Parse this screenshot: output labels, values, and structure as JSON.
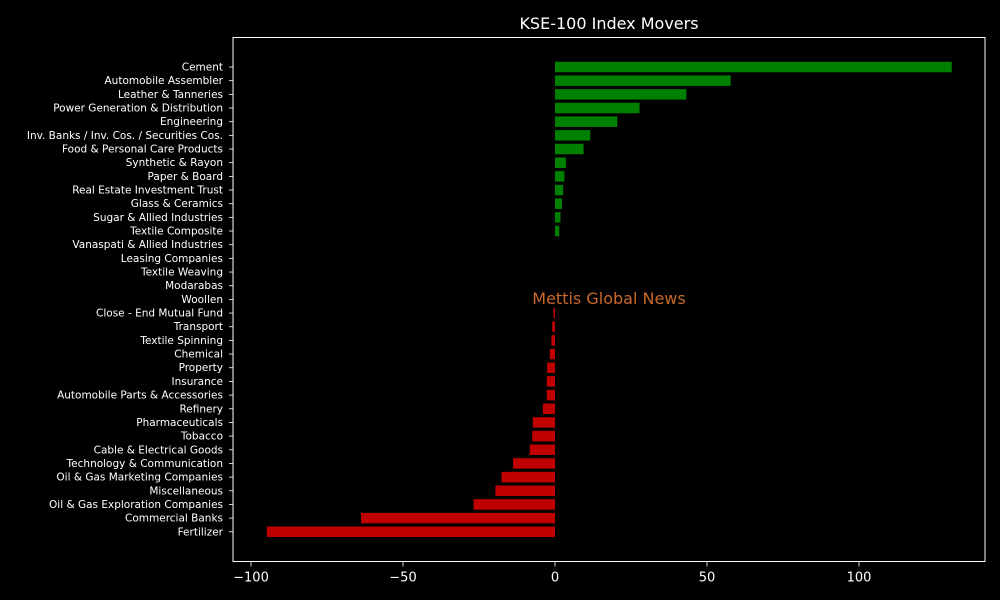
{
  "chart_data": {
    "type": "bar",
    "orientation": "horizontal",
    "title": "KSE-100 Index Movers",
    "watermark": "Mettis Global News",
    "xlabel": "",
    "ylabel": "",
    "xlim": [
      -106,
      142
    ],
    "xticks": [
      -100,
      -50,
      0,
      50,
      100
    ],
    "xtick_labels": [
      "−100",
      "−50",
      "0",
      "50",
      "100"
    ],
    "grid": false,
    "legend": "none",
    "colors": {
      "positive": "#008000",
      "negative": "#c00000",
      "background": "#000000",
      "text": "#ffffff",
      "watermark": "#c8692b"
    },
    "categories": [
      "Cement",
      "Automobile Assembler",
      "Leather & Tanneries",
      "Power Generation & Distribution",
      "Engineering",
      "Inv. Banks / Inv. Cos. / Securities Cos.",
      "Food & Personal Care Products",
      "Synthetic & Rayon",
      "Paper & Board",
      "Real Estate Investment Trust",
      "Glass & Ceramics",
      "Sugar & Allied Industries",
      "Textile Composite",
      "Vanaspati & Allied Industries",
      "Leasing Companies",
      "Textile Weaving",
      "Modarabas",
      "Woollen",
      "Close - End Mutual Fund",
      "Transport",
      "Textile Spinning",
      "Chemical",
      "Property",
      "Insurance",
      "Automobile Parts & Accessories",
      "Refinery",
      "Pharmaceuticals",
      "Tobacco",
      "Cable & Electrical Goods",
      "Technology & Communication",
      "Oil & Gas Marketing Companies",
      "Miscellaneous",
      "Oil & Gas Exploration Companies",
      "Commercial Banks",
      "Fertilizer"
    ],
    "values": [
      130.5,
      57.8,
      43.2,
      27.8,
      20.5,
      11.6,
      9.4,
      3.6,
      3.1,
      2.7,
      2.3,
      1.8,
      1.4,
      0,
      0,
      0,
      0,
      0,
      -0.5,
      -0.9,
      -1.2,
      -1.7,
      -2.6,
      -2.7,
      -2.7,
      -4.0,
      -7.3,
      -7.5,
      -8.3,
      -13.8,
      -17.6,
      -19.6,
      -26.8,
      -63.8,
      -94.8
    ]
  }
}
